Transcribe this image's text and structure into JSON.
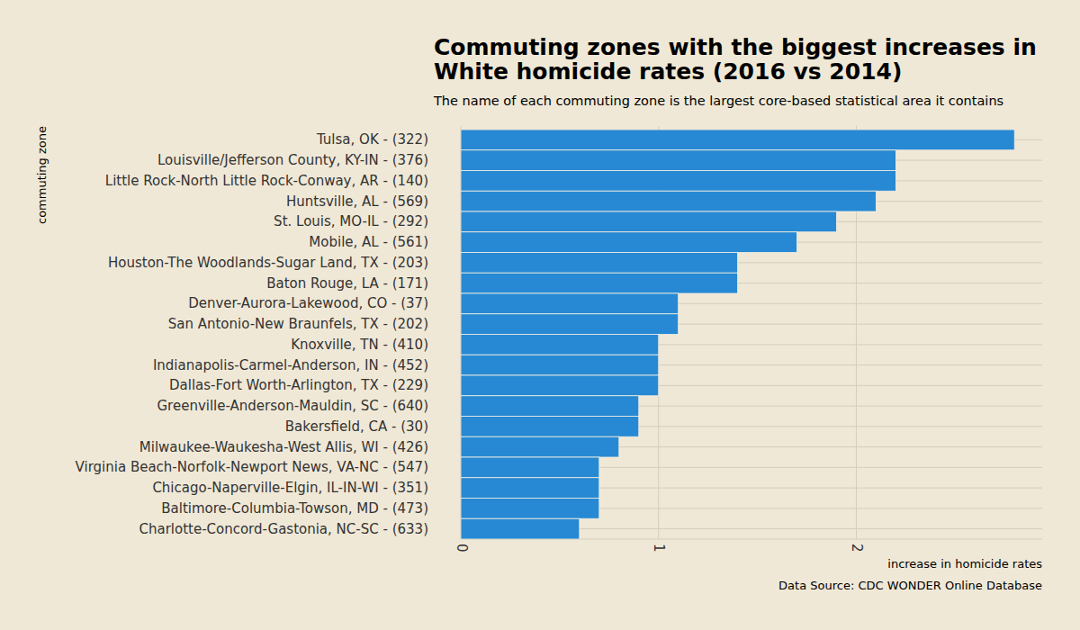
{
  "chart_data": {
    "type": "bar",
    "orientation": "horizontal",
    "title": "Commuting zones with the biggest increases in\nWhite homicide rates (2016 vs 2014)",
    "subtitle": "The name of each commuting zone is the largest core-based statistical area it contains",
    "x_label": "increase in homicide rates",
    "y_label": "commuting zone",
    "caption": "Data Source: CDC WONDER Online Database",
    "categories": [
      "Tulsa, OK - (322)",
      "Louisville/Jefferson County, KY-IN - (376)",
      "Little Rock-North Little Rock-Conway, AR - (140)",
      "Huntsville, AL - (569)",
      "St. Louis, MO-IL - (292)",
      "Mobile, AL - (561)",
      "Houston-The Woodlands-Sugar Land, TX - (203)",
      "Baton Rouge, LA - (171)",
      "Denver-Aurora-Lakewood, CO - (37)",
      "San Antonio-New Braunfels, TX - (202)",
      "Knoxville, TN - (410)",
      "Indianapolis-Carmel-Anderson, IN - (452)",
      "Dallas-Fort Worth-Arlington, TX - (229)",
      "Greenville-Anderson-Mauldin, SC - (640)",
      "Bakersfield, CA - (30)",
      "Milwaukee-Waukesha-West Allis, WI - (426)",
      "Virginia Beach-Norfolk-Newport News, VA-NC - (547)",
      "Chicago-Naperville-Elgin, IL-IN-WI - (351)",
      "Baltimore-Columbia-Towson, MD - (473)",
      "Charlotte-Concord-Gastonia, NC-SC - (633)"
    ],
    "values": [
      2.8,
      2.2,
      2.2,
      2.1,
      1.9,
      1.7,
      1.4,
      1.4,
      1.1,
      1.1,
      1.0,
      1.0,
      1.0,
      0.9,
      0.9,
      0.8,
      0.7,
      0.7,
      0.7,
      0.6
    ],
    "color": "#2789d3",
    "xlim": [
      0,
      2.94
    ],
    "xticks": [
      0,
      1,
      2
    ],
    "grid": true
  }
}
